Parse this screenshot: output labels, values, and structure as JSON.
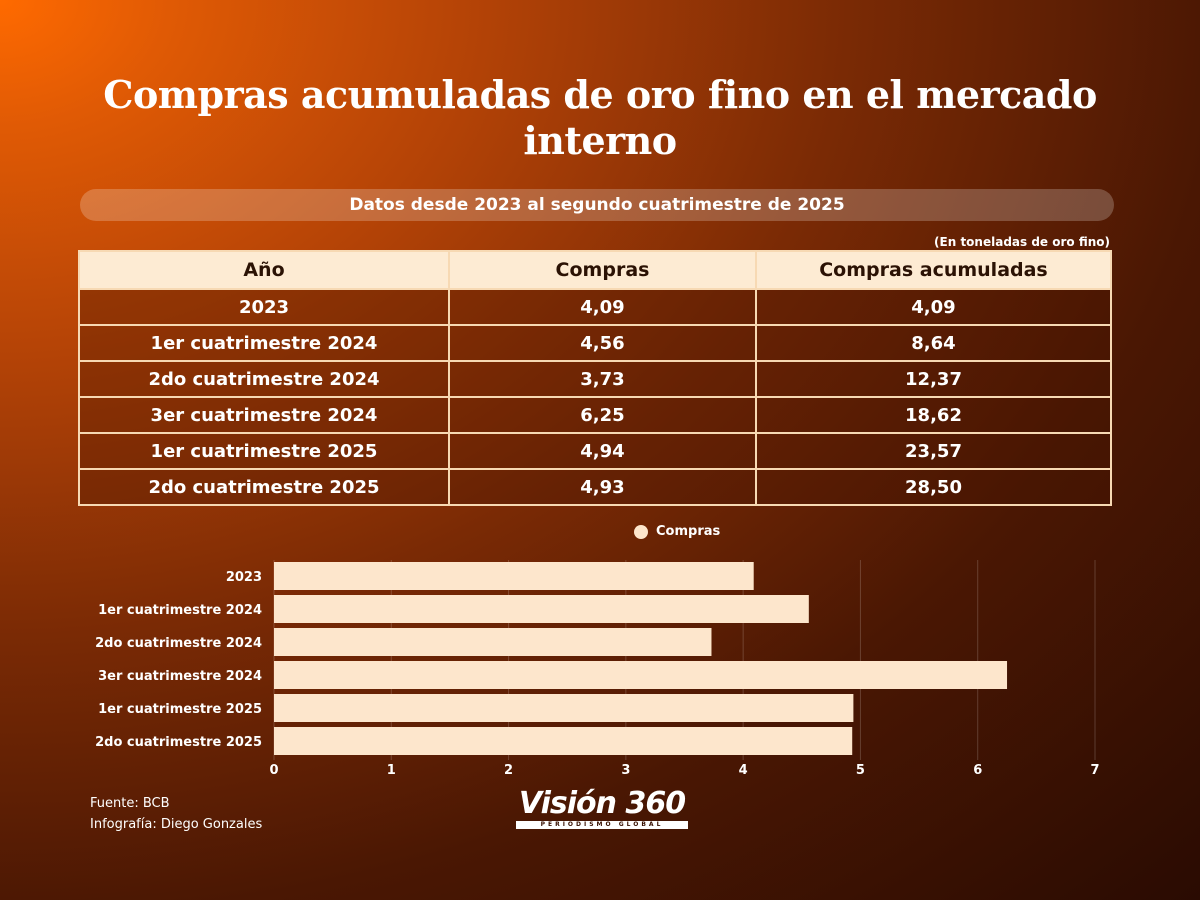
{
  "title": "Compras acumuladas de oro fino en el mercado interno",
  "subtitle": "Datos desde 2023 al segundo cuatrimestre de 2025",
  "unit_note": "(En toneladas de oro fino)",
  "table": {
    "headers": [
      "Año",
      "Compras",
      "Compras acumuladas"
    ],
    "rows": [
      [
        "2023",
        "4,09",
        "4,09"
      ],
      [
        "1er cuatrimestre 2024",
        "4,56",
        "8,64"
      ],
      [
        "2do cuatrimestre 2024",
        "3,73",
        "12,37"
      ],
      [
        "3er cuatrimestre 2024",
        "6,25",
        "18,62"
      ],
      [
        "1er cuatrimestre 2025",
        "4,94",
        "23,57"
      ],
      [
        "2do cuatrimestre 2025",
        "4,93",
        "28,50"
      ]
    ]
  },
  "chart_data": {
    "type": "bar",
    "orientation": "horizontal",
    "categories": [
      "2023",
      "1er cuatrimestre 2024",
      "2do cuatrimestre 2024",
      "3er cuatrimestre 2024",
      "1er cuatrimestre 2025",
      "2do cuatrimestre 2025"
    ],
    "series": [
      {
        "name": "Compras",
        "values": [
          4.09,
          4.56,
          3.73,
          6.25,
          4.94,
          4.93
        ]
      }
    ],
    "xlim": [
      0,
      7
    ],
    "xticks": [
      "0",
      "1",
      "2",
      "3",
      "4",
      "5",
      "6",
      "7"
    ],
    "legend": "top-center",
    "grid": true,
    "bar_color": "#fde6cc"
  },
  "footer": {
    "source": "Fuente:  BCB",
    "credit": "Infografía: Diego Gonzales"
  },
  "logo": {
    "name": "Visión 360",
    "tagline": "PERIODISMO GLOBAL"
  }
}
